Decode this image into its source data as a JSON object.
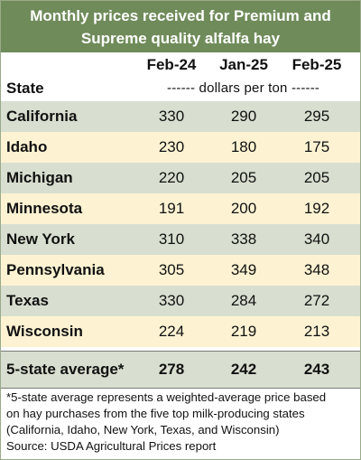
{
  "chart_data": {
    "type": "table",
    "title": "Monthly prices received for Premium and Supreme quality alfalfa hay",
    "columns": [
      "Feb-24",
      "Jan-25",
      "Feb-25"
    ],
    "row_header": "State",
    "units": "------ dollars per ton ------",
    "rows": [
      {
        "state": "California",
        "values": [
          "330",
          "290",
          "295"
        ]
      },
      {
        "state": "Idaho",
        "values": [
          "230",
          "180",
          "175"
        ]
      },
      {
        "state": "Michigan",
        "values": [
          "220",
          "205",
          "205"
        ]
      },
      {
        "state": "Minnesota",
        "values": [
          "191",
          "200",
          "192"
        ]
      },
      {
        "state": "New York",
        "values": [
          "310",
          "338",
          "340"
        ]
      },
      {
        "state": "Pennsylvania",
        "values": [
          "305",
          "349",
          "348"
        ]
      },
      {
        "state": "Texas",
        "values": [
          "330",
          "284",
          "272"
        ]
      },
      {
        "state": "Wisconsin",
        "values": [
          "224",
          "219",
          "213"
        ]
      }
    ],
    "average": {
      "label": "5-state average*",
      "values": [
        "278",
        "242",
        "243"
      ]
    },
    "footnote": [
      "*5-state average represents  a weighted-average price based",
      "on hay purchases from the five top milk-producing states",
      "(California, Idaho, New York, Texas, and Wisconsin)",
      "Source: USDA Agricultural Prices report"
    ]
  },
  "colors": {
    "title_bg": "#6f8b5a",
    "row_green": "#d8dfd0",
    "row_yellow": "#fdf3d3"
  }
}
